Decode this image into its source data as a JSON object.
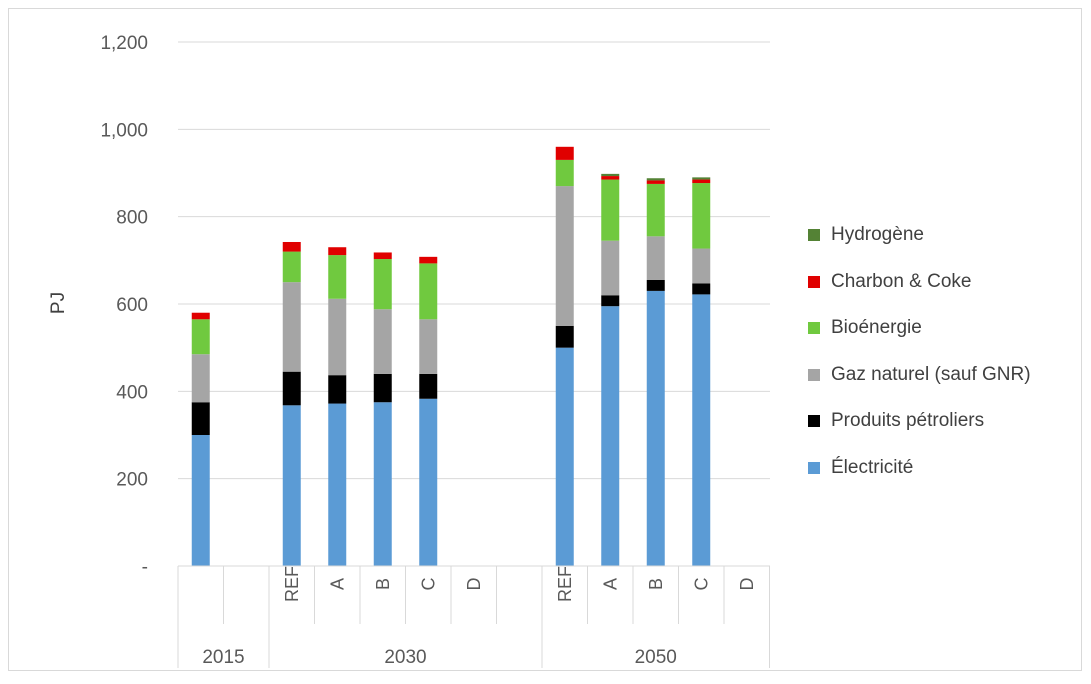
{
  "chart_data": {
    "type": "bar",
    "stacked": true,
    "title": "",
    "xlabel": "",
    "ylabel": "PJ",
    "ylim": [
      0,
      1200
    ],
    "yticks": [
      {
        "value": 0,
        "label": "-"
      },
      {
        "value": 200,
        "label": "200"
      },
      {
        "value": 400,
        "label": "400"
      },
      {
        "value": 600,
        "label": "600"
      },
      {
        "value": 800,
        "label": "800"
      },
      {
        "value": 1000,
        "label": "1,000"
      },
      {
        "value": 1200,
        "label": "1,200"
      }
    ],
    "grid": true,
    "legend_position": "right",
    "categories": [
      {
        "group": "2015",
        "label": ""
      },
      {
        "group": "2015",
        "label": ""
      },
      {
        "group": "2030",
        "label": "REF"
      },
      {
        "group": "2030",
        "label": "A"
      },
      {
        "group": "2030",
        "label": "B"
      },
      {
        "group": "2030",
        "label": "C"
      },
      {
        "group": "2030",
        "label": "D"
      },
      {
        "group": "2030",
        "label": ""
      },
      {
        "group": "2050",
        "label": "REF"
      },
      {
        "group": "2050",
        "label": "A"
      },
      {
        "group": "2050",
        "label": "B"
      },
      {
        "group": "2050",
        "label": "C"
      },
      {
        "group": "2050",
        "label": "D"
      }
    ],
    "groups": [
      {
        "label": "2015",
        "start": 0,
        "end": 1
      },
      {
        "label": "2030",
        "start": 2,
        "end": 7
      },
      {
        "label": "2050",
        "start": 8,
        "end": 12
      }
    ],
    "series": [
      {
        "name": "Électricité",
        "color": "#5b9bd5",
        "values": [
          300,
          null,
          368,
          372,
          375,
          383,
          null,
          null,
          500,
          595,
          630,
          622,
          null
        ]
      },
      {
        "name": "Produits pétroliers",
        "color": "#000000",
        "values": [
          75,
          null,
          77,
          65,
          65,
          57,
          null,
          null,
          50,
          25,
          25,
          25,
          null
        ]
      },
      {
        "name": "Gaz naturel (sauf GNR)",
        "color": "#a5a5a5",
        "values": [
          110,
          null,
          205,
          175,
          148,
          125,
          null,
          null,
          320,
          125,
          100,
          80,
          null
        ]
      },
      {
        "name": "Bioénergie",
        "color": "#70c93f",
        "values": [
          80,
          null,
          70,
          100,
          115,
          128,
          null,
          null,
          60,
          140,
          120,
          150,
          null
        ]
      },
      {
        "name": "Charbon & Coke",
        "color": "#e00000",
        "values": [
          15,
          null,
          22,
          18,
          15,
          15,
          null,
          null,
          30,
          8,
          8,
          8,
          null
        ]
      },
      {
        "name": "Hydrogène",
        "color": "#548235",
        "values": [
          0,
          null,
          0,
          0,
          0,
          0,
          null,
          null,
          0,
          5,
          5,
          5,
          null
        ]
      }
    ],
    "legend_order": [
      "Hydrogène",
      "Charbon & Coke",
      "Bioénergie",
      "Gaz naturel (sauf GNR)",
      "Produits pétroliers",
      "Électricité"
    ]
  }
}
